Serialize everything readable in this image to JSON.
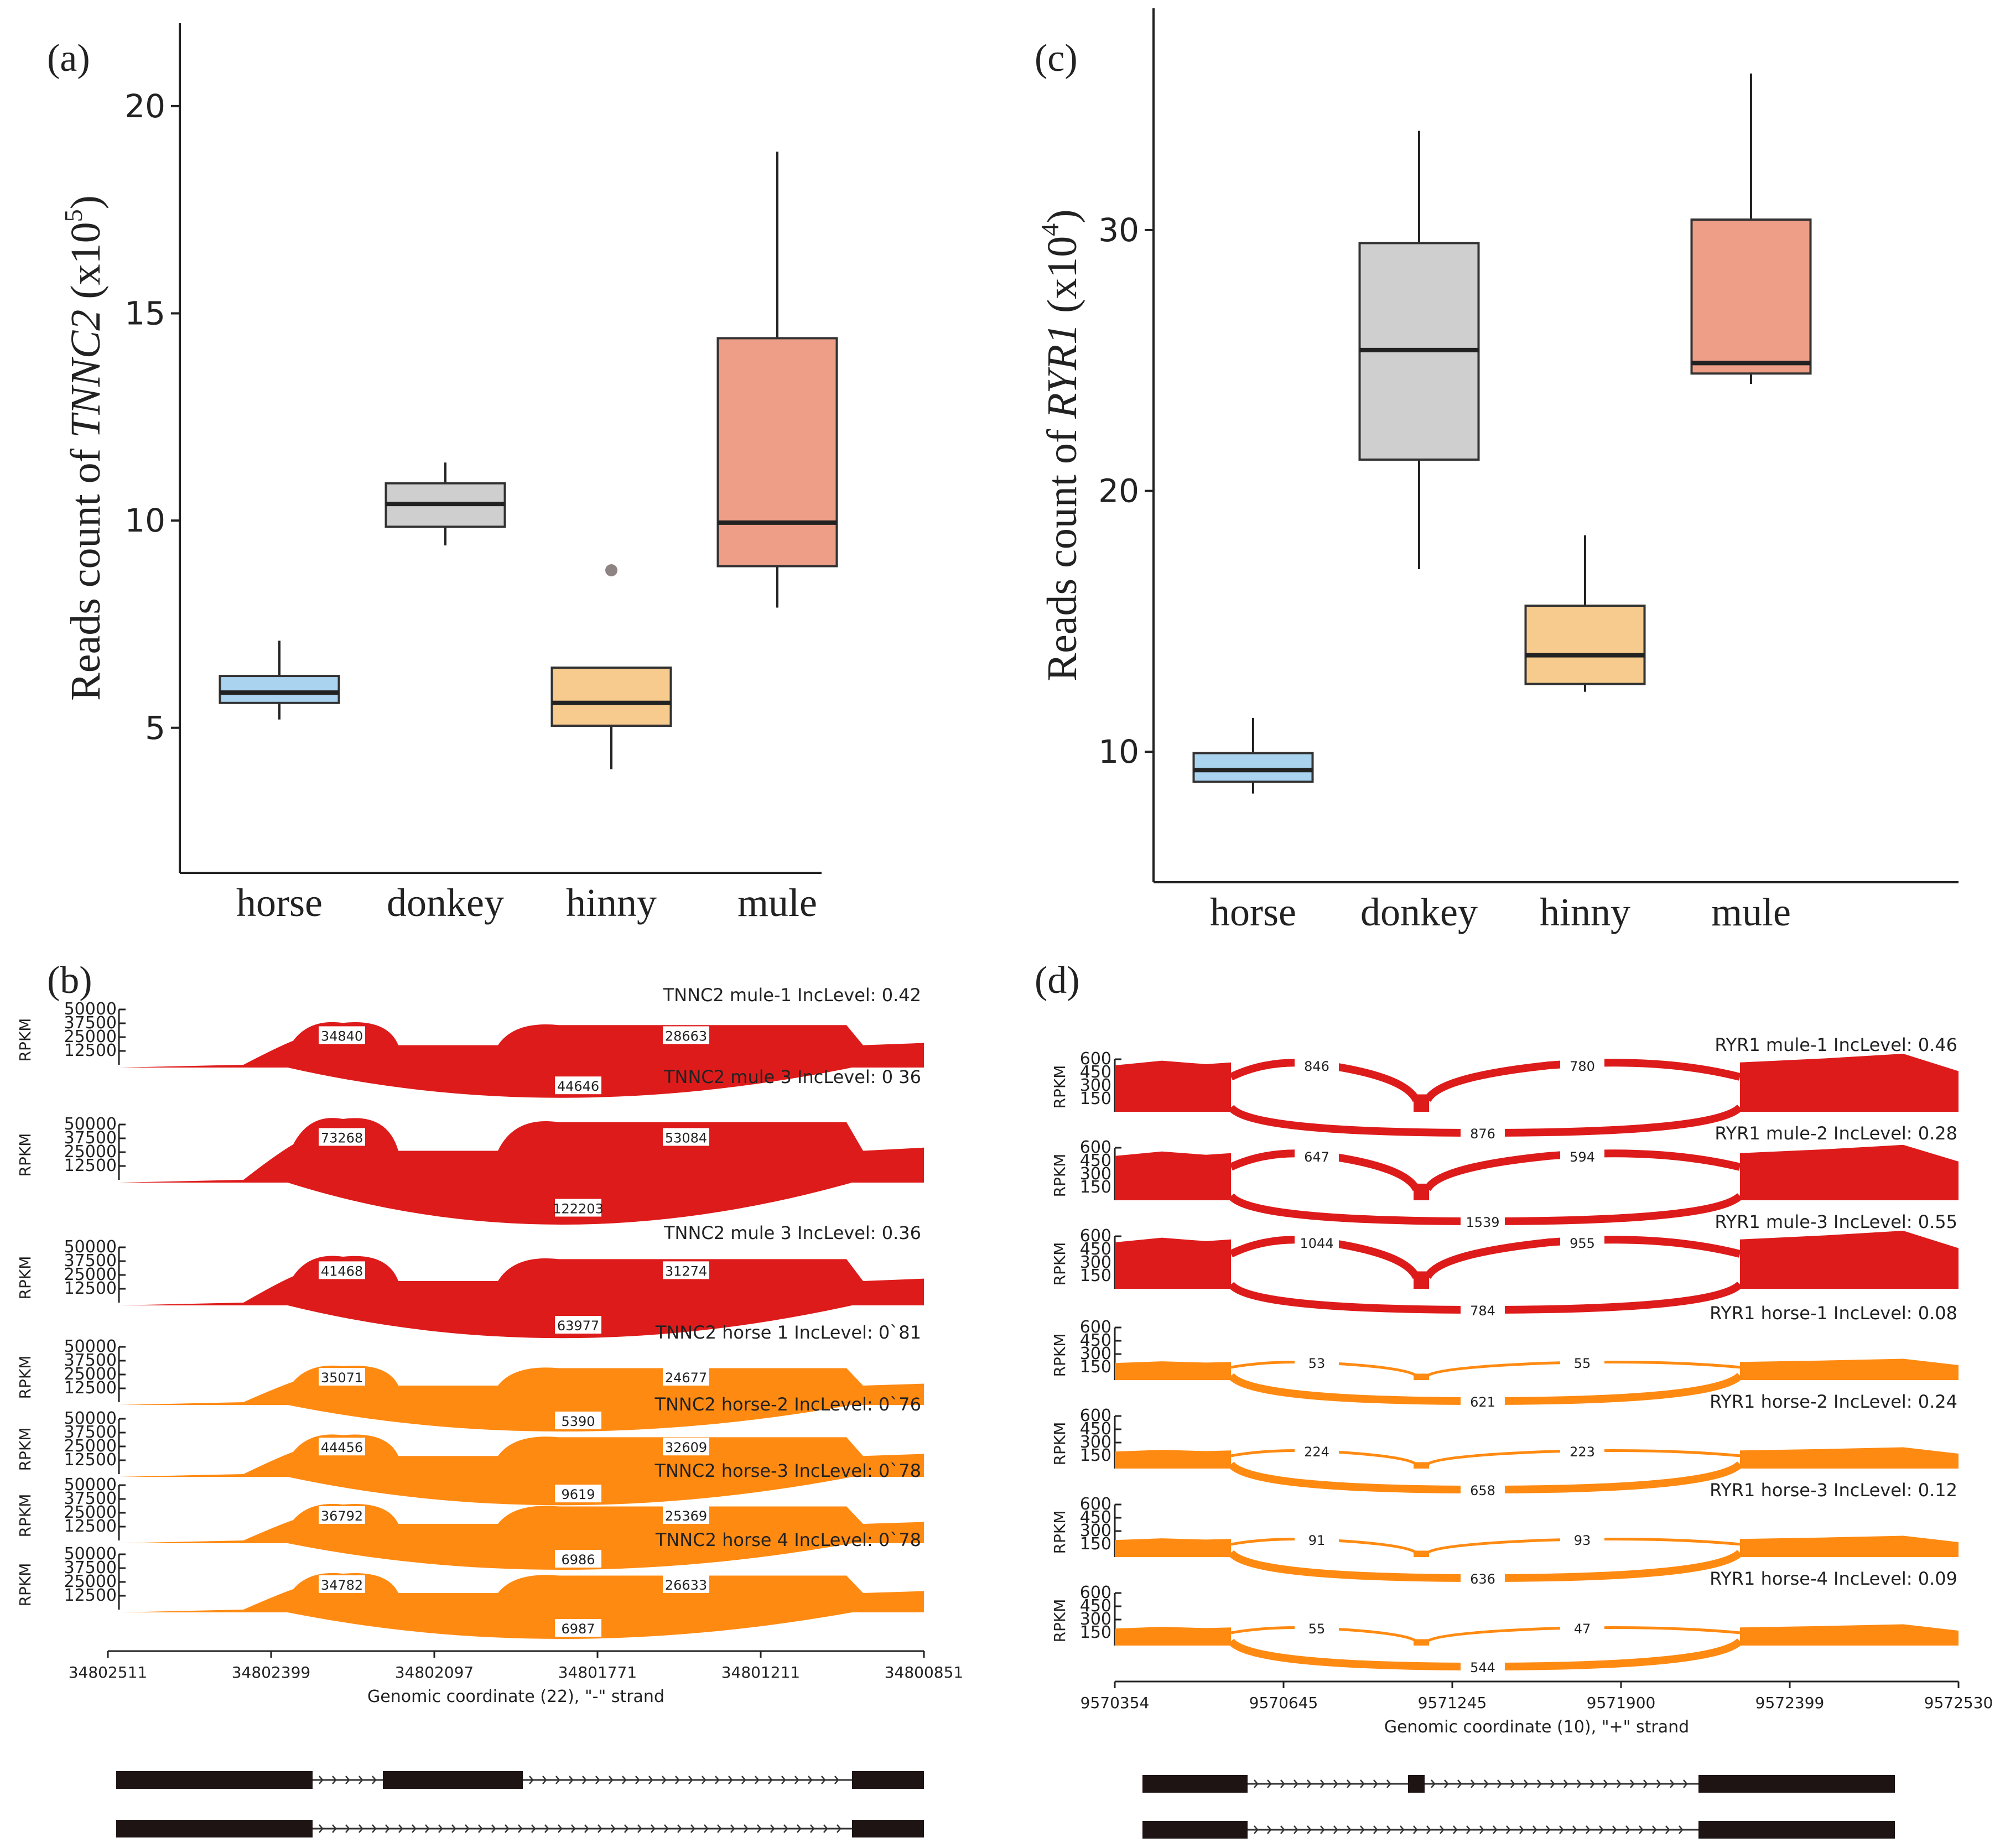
{
  "colors": {
    "horse": "#a9d3ef",
    "donkey": "#cfcfcf",
    "hinny": "#f7cb8d",
    "mule": "#ee9e87",
    "mule_sashimi": "#de1b1b",
    "horse_sashimi": "#ff8a12",
    "exon": "#1e1414",
    "outlier": "#8f8484"
  },
  "panels": {
    "a": "(a)",
    "b": "(b)",
    "c": "(c)",
    "d": "(d)"
  },
  "chart_data": [
    {
      "id": "a",
      "type": "boxplot",
      "ylabel_prefix": "Reads count of ",
      "ylabel_gene": "TNNC2",
      "ylabel_unit": " (x10",
      "ylabel_exp": "5",
      "ylabel_close": ")",
      "ylim": [
        1.5,
        22
      ],
      "yticks": [
        5,
        10,
        15,
        20
      ],
      "categories": [
        "horse",
        "donkey",
        "hinny",
        "mule"
      ],
      "boxes": [
        {
          "name": "horse",
          "min": 5.2,
          "q1": 5.6,
          "median": 5.85,
          "q3": 6.25,
          "max": 7.1,
          "outliers": []
        },
        {
          "name": "donkey",
          "min": 9.4,
          "q1": 9.85,
          "median": 10.4,
          "q3": 10.9,
          "max": 11.4,
          "outliers": []
        },
        {
          "name": "hinny",
          "min": 4.0,
          "q1": 5.05,
          "median": 5.6,
          "q3": 6.45,
          "max": 6.45,
          "outliers": [
            8.8
          ]
        },
        {
          "name": "mule",
          "min": 7.9,
          "q1": 8.9,
          "median": 9.95,
          "q3": 14.4,
          "max": 18.9,
          "outliers": []
        }
      ]
    },
    {
      "id": "c",
      "type": "boxplot",
      "ylabel_prefix": "Reads count of ",
      "ylabel_gene": "RYR1",
      "ylabel_unit": " (x10",
      "ylabel_exp": "4",
      "ylabel_close": ")",
      "ylim": [
        5,
        38.5
      ],
      "yticks": [
        10,
        20,
        30
      ],
      "categories": [
        "horse",
        "donkey",
        "hinny",
        "mule"
      ],
      "boxes": [
        {
          "name": "horse",
          "min": 8.4,
          "q1": 8.85,
          "median": 9.3,
          "q3": 9.95,
          "max": 11.3,
          "outliers": []
        },
        {
          "name": "donkey",
          "min": 17.0,
          "q1": 21.2,
          "median": 25.4,
          "q3": 29.5,
          "max": 33.8,
          "outliers": []
        },
        {
          "name": "hinny",
          "min": 12.3,
          "q1": 12.6,
          "median": 13.7,
          "q3": 15.6,
          "max": 18.3,
          "outliers": []
        },
        {
          "name": "mule",
          "min": 24.1,
          "q1": 24.5,
          "median": 24.9,
          "q3": 30.4,
          "max": 36.0,
          "outliers": []
        }
      ]
    },
    {
      "id": "b",
      "type": "sashimi",
      "ylabel": "RPKM",
      "yticks": [
        "50000",
        "37500",
        "25000",
        "12500"
      ],
      "xticks": [
        "34802511",
        "34802399",
        "34802097",
        "34801771",
        "34801211",
        "34800851"
      ],
      "xlabel": "Genomic coordinate (22), \"-\" strand",
      "tracks": [
        {
          "label": "TNNC2 mule-1 IncLevel: 0.42",
          "group": "mule",
          "j1": "34840",
          "j2": "28663",
          "skip": "44646",
          "scale": 0.62
        },
        {
          "label": "TNNC2 mule 3 IncLevel: 0 36",
          "group": "mule",
          "j1": "73268",
          "j2": "53084",
          "skip": "122203",
          "scale": 1.0
        },
        {
          "label": "TNNC2 mule 3 IncLevel: 0.36",
          "group": "mule",
          "j1": "41468",
          "j2": "31274",
          "skip": "63977",
          "scale": 0.7
        },
        {
          "label": "TNNC2 horse 1 IncLevel: 0`81",
          "group": "horse",
          "j1": "35071",
          "j2": "24677",
          "skip": "5390",
          "scale": 0.5
        },
        {
          "label": "TNNC2 horse-2 IncLevel: 0`76",
          "group": "horse",
          "j1": "44456",
          "j2": "32609",
          "skip": "9619",
          "scale": 0.56
        },
        {
          "label": "TNNC2 horse-3 IncLevel: 0`78",
          "group": "horse",
          "j1": "36792",
          "j2": "25369",
          "skip": "6986",
          "scale": 0.5
        },
        {
          "label": "TNNC2 horse 4 IncLevel: 0`78",
          "group": "horse",
          "j1": "34782",
          "j2": "26633",
          "skip": "6987",
          "scale": 0.5
        }
      ]
    },
    {
      "id": "d",
      "type": "sashimi",
      "ylabel": "RPKM",
      "yticks": [
        "600",
        "450",
        "300",
        "150"
      ],
      "xticks": [
        "9570354",
        "9570645",
        "9571245",
        "9571900",
        "9572399",
        "9572530"
      ],
      "xlabel": "Genomic coordinate (10), \"+\" strand",
      "tracks": [
        {
          "label": "RYR1 mule-1 IncLevel: 0.46",
          "group": "mule",
          "j1": "846",
          "j2": "780",
          "skip": "876",
          "scale": 1.0
        },
        {
          "label": "RYR1 mule-2 IncLevel: 0.28",
          "group": "mule",
          "j1": "647",
          "j2": "594",
          "skip": "1539",
          "scale": 0.95
        },
        {
          "label": "RYR1 mule-3 IncLevel: 0.55",
          "group": "mule",
          "j1": "1044",
          "j2": "955",
          "skip": "784",
          "scale": 1.0
        },
        {
          "label": "RYR1 horse-1 IncLevel: 0.08",
          "group": "horse",
          "j1": "53",
          "j2": "55",
          "skip": "621",
          "scale": 0.3
        },
        {
          "label": "RYR1 horse-2 IncLevel: 0.24",
          "group": "horse",
          "j1": "224",
          "j2": "223",
          "skip": "658",
          "scale": 0.3
        },
        {
          "label": "RYR1 horse-3 IncLevel: 0.12",
          "group": "horse",
          "j1": "91",
          "j2": "93",
          "skip": "636",
          "scale": 0.3
        },
        {
          "label": "RYR1 horse-4 IncLevel: 0.09",
          "group": "horse",
          "j1": "55",
          "j2": "47",
          "skip": "544",
          "scale": 0.3
        }
      ]
    }
  ]
}
